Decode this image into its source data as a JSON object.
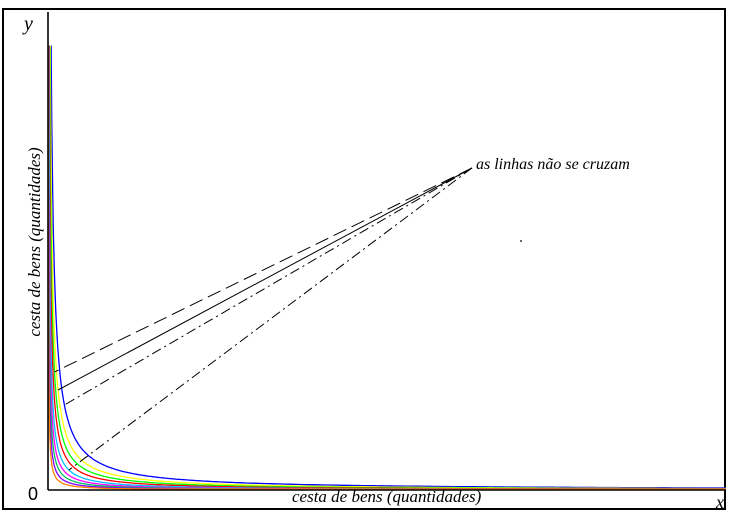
{
  "figure": {
    "y_letter": "y",
    "x_letter": "x",
    "origin": "0",
    "x_axis_title": "cesta de bens (quantidades)",
    "y_axis_title": "cesta de bens (quantidades)",
    "annotation": "as linhas não se cruzam"
  },
  "colors": {
    "axis": "#000000",
    "background": "#ffffff",
    "curves": [
      "#0000ff",
      "#ffff00",
      "#00ff00",
      "#ff0000",
      "#00c0ff",
      "#ff00ff",
      "#00c060",
      "#8000ff",
      "#ff8000"
    ],
    "pointer": "#000000"
  },
  "chart_data": {
    "type": "line",
    "description_kind": "family of non-crossing indifference curves (y = k / x)",
    "curve_levels": [
      10,
      7.2,
      5.5,
      4.2,
      3.0,
      2.2,
      1.6,
      1.1,
      0.7
    ],
    "xlim": [
      0,
      10
    ],
    "ylim": [
      0,
      10
    ],
    "grid": false,
    "pointer_lines": [
      {
        "style": "long-dash",
        "target_curve": 2
      },
      {
        "style": "solid",
        "target_curve": 1
      },
      {
        "style": "dash-dot",
        "target_curve": 0
      },
      {
        "style": "dash-dot",
        "target_curve": 4
      }
    ]
  }
}
